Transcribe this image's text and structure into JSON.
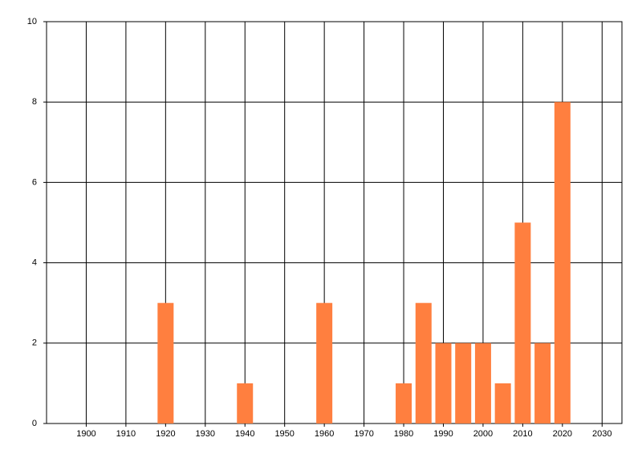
{
  "chart_data": {
    "type": "bar",
    "x": [
      1920,
      1940,
      1960,
      1980,
      1985,
      1990,
      1995,
      2000,
      2005,
      2010,
      2015,
      2020
    ],
    "values": [
      3,
      1,
      3,
      1,
      3,
      2,
      2,
      2,
      1,
      5,
      2,
      8
    ],
    "color": "#ff7f3f",
    "xlim": [
      1890,
      2035
    ],
    "xticks": [
      1900,
      1910,
      1920,
      1930,
      1940,
      1950,
      1960,
      1970,
      1980,
      1990,
      2000,
      2010,
      2020,
      2030
    ],
    "ylim": [
      0,
      10
    ],
    "yticks": [
      0,
      2,
      4,
      6,
      8,
      10
    ],
    "grid": true
  }
}
